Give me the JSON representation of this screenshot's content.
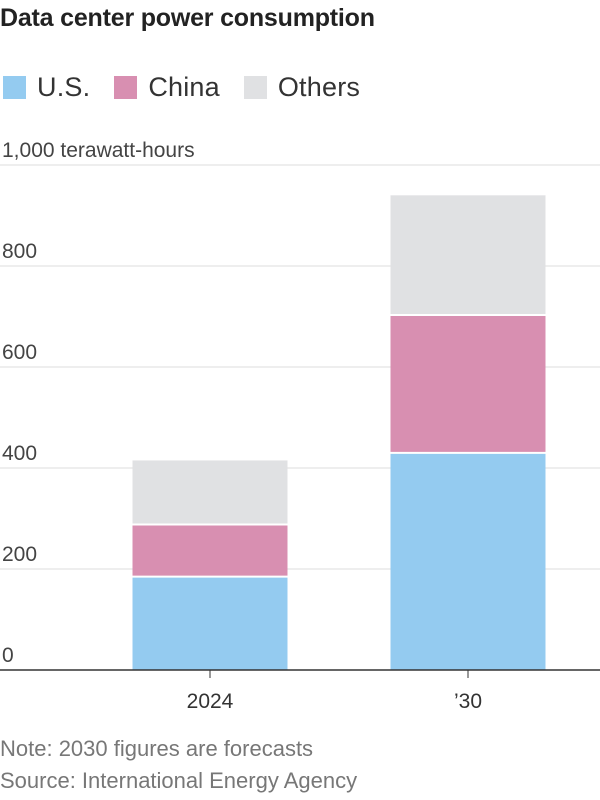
{
  "title": "Data center power consumption",
  "legend": [
    {
      "label": "U.S.",
      "color": "#94cbf0"
    },
    {
      "label": "China",
      "color": "#d88fb1"
    },
    {
      "label": "Others",
      "color": "#e0e1e3"
    }
  ],
  "notes": {
    "note": "Note: 2030 figures are forecasts",
    "source": "Source: International Energy Agency"
  },
  "chart_data": {
    "type": "bar",
    "stacked": true,
    "categories": [
      "2024",
      "’30"
    ],
    "series": [
      {
        "name": "U.S.",
        "color": "#94cbf0",
        "values": [
          185,
          430
        ]
      },
      {
        "name": "China",
        "color": "#d88fb1",
        "values": [
          103,
          273
        ]
      },
      {
        "name": "Others",
        "color": "#e0e1e3",
        "values": [
          127,
          237
        ]
      }
    ],
    "ylim": [
      0,
      1000
    ],
    "yticks": [
      0,
      200,
      400,
      600,
      800,
      1000
    ],
    "ytick_labels": [
      "0",
      "200",
      "400",
      "600",
      "800",
      "1,000 terawatt-hours"
    ],
    "grid": true,
    "legend_position": "top-left"
  }
}
